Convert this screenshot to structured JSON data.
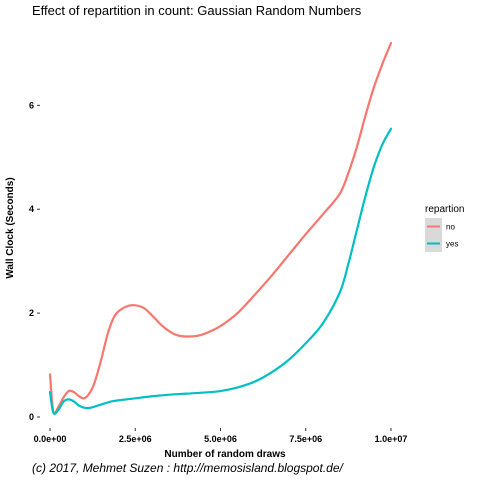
{
  "chart_data": {
    "type": "line",
    "title": "Effect of repartition in count: Gaussian Random Numbers",
    "xlabel": "Number of random draws",
    "ylabel": "Wall Clock (Seconds)",
    "xlim": [
      0,
      10000000
    ],
    "ylim": [
      0,
      7.2
    ],
    "x_ticks": [
      {
        "value": 0,
        "label": "0.0e+00"
      },
      {
        "value": 2500000,
        "label": "2.5e+06"
      },
      {
        "value": 5000000,
        "label": "5.0e+06"
      },
      {
        "value": 7500000,
        "label": "7.5e+06"
      },
      {
        "value": 10000000,
        "label": "1.0e+07"
      }
    ],
    "y_ticks": [
      {
        "value": 0,
        "label": "0"
      },
      {
        "value": 2,
        "label": "2"
      },
      {
        "value": 4,
        "label": "4"
      },
      {
        "value": 6,
        "label": "6"
      }
    ],
    "grid": false,
    "legend": {
      "title": "repartion",
      "position": "right"
    },
    "series": [
      {
        "name": "no",
        "color": "#F8766D",
        "x": [
          0,
          100000,
          250000,
          400000,
          550000,
          700000,
          850000,
          1000000,
          1150000,
          1300000,
          1500000,
          1700000,
          1900000,
          2100000,
          2300000,
          2500000,
          2750000,
          3000000,
          3250000,
          3500000,
          3750000,
          4000000,
          4300000,
          4600000,
          5000000,
          5500000,
          6000000,
          6500000,
          7000000,
          7500000,
          8000000,
          8500000,
          8750000,
          9000000,
          9250000,
          9500000,
          9750000,
          10000000
        ],
        "y": [
          0.82,
          0.1,
          0.2,
          0.38,
          0.5,
          0.48,
          0.4,
          0.36,
          0.45,
          0.65,
          1.1,
          1.62,
          1.95,
          2.08,
          2.14,
          2.15,
          2.1,
          1.95,
          1.78,
          1.65,
          1.57,
          1.55,
          1.56,
          1.62,
          1.75,
          2.0,
          2.35,
          2.72,
          3.12,
          3.52,
          3.9,
          4.3,
          4.7,
          5.2,
          5.8,
          6.35,
          6.8,
          7.2
        ]
      },
      {
        "name": "yes",
        "color": "#00BFC4",
        "x": [
          0,
          100000,
          250000,
          400000,
          550000,
          700000,
          850000,
          1000000,
          1200000,
          1400000,
          1600000,
          1800000,
          2000000,
          2500000,
          3000000,
          3500000,
          4000000,
          4500000,
          5000000,
          5500000,
          6000000,
          6500000,
          7000000,
          7500000,
          8000000,
          8500000,
          8750000,
          9000000,
          9250000,
          9500000,
          9750000,
          10000000
        ],
        "y": [
          0.48,
          0.08,
          0.14,
          0.3,
          0.34,
          0.3,
          0.22,
          0.18,
          0.18,
          0.22,
          0.26,
          0.3,
          0.32,
          0.36,
          0.4,
          0.43,
          0.45,
          0.47,
          0.5,
          0.57,
          0.68,
          0.86,
          1.1,
          1.42,
          1.8,
          2.4,
          2.95,
          3.6,
          4.25,
          4.82,
          5.25,
          5.55
        ]
      }
    ],
    "caption": "(c) 2017, Mehmet Suzen : http://memosisland.blogspot.de/"
  }
}
